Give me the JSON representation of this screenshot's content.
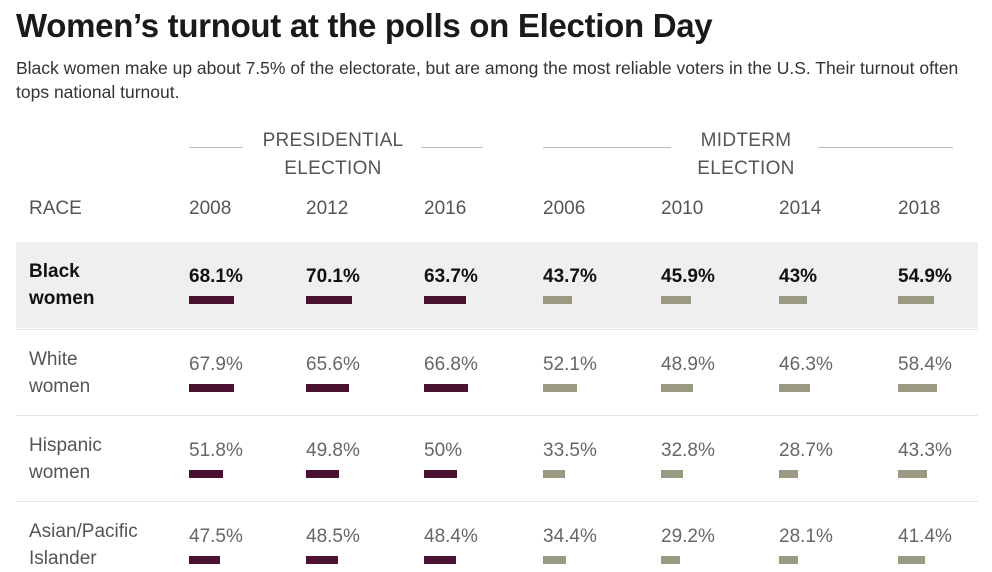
{
  "title": "Women’s turnout at the polls on Election Day",
  "subtitle": "Black women make up about 7.5% of the electorate, but are among the most reliable voters in the U.S. Their turnout often tops national turnout.",
  "colors": {
    "presidential_bar": "#4a1230",
    "midterm_bar": "#9a9a83",
    "highlight_row": "#efefef"
  },
  "chart_data": {
    "type": "table",
    "title": "Women’s turnout at the polls on Election Day",
    "row_header": "RACE",
    "groups": [
      {
        "label": "PRESIDENTIAL\nELECTION",
        "years": [
          "2008",
          "2012",
          "2016"
        ]
      },
      {
        "label": "MIDTERM\nELECTION",
        "years": [
          "2006",
          "2010",
          "2014",
          "2018"
        ]
      }
    ],
    "columns": [
      "2008",
      "2012",
      "2016",
      "2006",
      "2010",
      "2014",
      "2018"
    ],
    "rows": [
      {
        "race": "Black\nwomen",
        "labels": [
          "68.1%",
          "70.1%",
          "63.7%",
          "43.7%",
          "45.9%",
          "43%",
          "54.9%"
        ],
        "values": [
          68.1,
          70.1,
          63.7,
          43.7,
          45.9,
          43,
          54.9
        ],
        "highlight": true
      },
      {
        "race": "White\nwomen",
        "labels": [
          "67.9%",
          "65.6%",
          "66.8%",
          "52.1%",
          "48.9%",
          "46.3%",
          "58.4%"
        ],
        "values": [
          67.9,
          65.6,
          66.8,
          52.1,
          48.9,
          46.3,
          58.4
        ],
        "highlight": false
      },
      {
        "race": "Hispanic\nwomen",
        "labels": [
          "51.8%",
          "49.8%",
          "50%",
          "33.5%",
          "32.8%",
          "28.7%",
          "43.3%"
        ],
        "values": [
          51.8,
          49.8,
          50,
          33.5,
          32.8,
          28.7,
          43.3
        ],
        "highlight": false
      },
      {
        "race": "Asian/Pacific\nIslander",
        "labels": [
          "47.5%",
          "48.5%",
          "48.4%",
          "34.4%",
          "29.2%",
          "28.1%",
          "41.4%"
        ],
        "values": [
          47.5,
          48.5,
          48.4,
          34.4,
          29.2,
          28.1,
          41.4
        ],
        "highlight": false
      }
    ]
  }
}
